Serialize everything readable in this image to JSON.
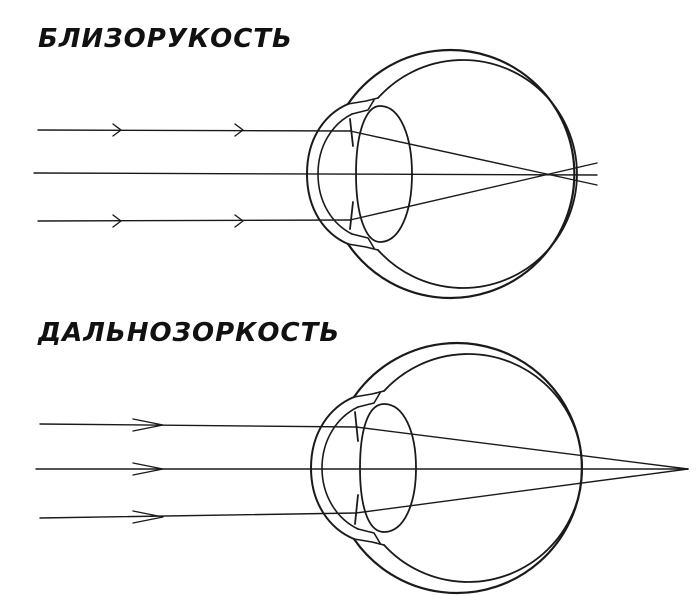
{
  "diagrams": [
    {
      "title": "БЛИЗОРУКОСТЬ"
    },
    {
      "title": "ДАЛЬНОЗОРКОСТЬ"
    }
  ],
  "colors": {
    "ink": "#1a1a1a",
    "background": "#ffffff"
  }
}
